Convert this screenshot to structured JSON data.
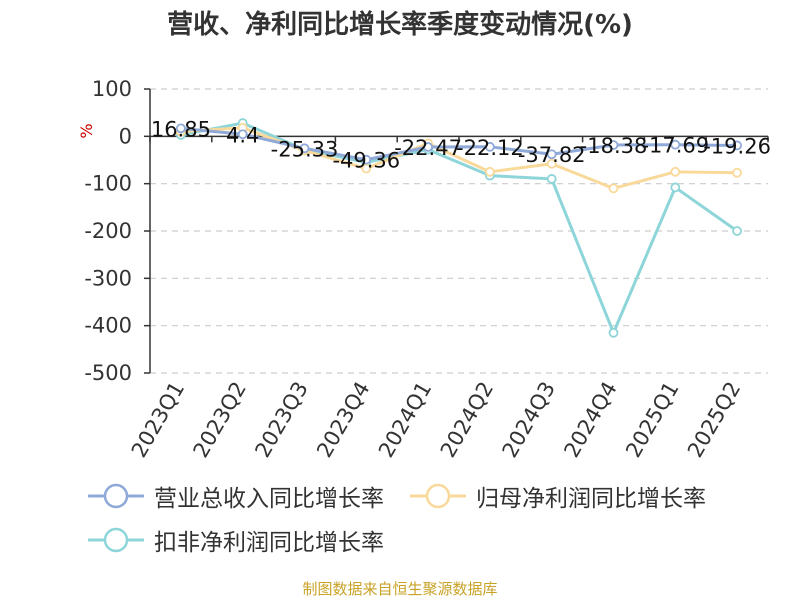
{
  "title": "营收、净利同比增长率季度变动情况(%)",
  "footer": "制图数据来自恒生聚源数据库",
  "colors": {
    "revenue": "#8fa9d8",
    "parent_profit": "#f9d99a",
    "deducted_profit": "#8dd5d9",
    "axis": "#333333",
    "grid": "#cccccc",
    "unit": "#cc0000"
  },
  "chart_data": {
    "type": "line",
    "title": "营收、净利同比增长率季度变动情况(%)",
    "unit_label": "%",
    "categories": [
      "2023Q1",
      "2023Q2",
      "2023Q3",
      "2023Q4",
      "2024Q1",
      "2024Q2",
      "2024Q3",
      "2024Q4",
      "2025Q1",
      "2025Q2"
    ],
    "yticks": [
      100,
      0,
      -100,
      -200,
      -300,
      -400,
      -500
    ],
    "ylim": [
      -500,
      100
    ],
    "grid": true,
    "legend_position": "bottom",
    "series": [
      {
        "name": "营业总收入同比增长率",
        "color_key": "revenue",
        "values": [
          16.85,
          4.4,
          -25.33,
          -49.36,
          -22.47,
          -22.12,
          -37.82,
          -18.38,
          -17.69,
          -19.26
        ],
        "labels": [
          "16.85",
          "4.4",
          "-25.33",
          "-49.36",
          "-22.47",
          "-22.12",
          "-37.82",
          "-18.38",
          "-17.69",
          "-19.26"
        ]
      },
      {
        "name": "归母净利润同比增长率",
        "color_key": "parent_profit",
        "values": [
          10,
          18,
          -30,
          -68,
          -15,
          -75,
          -58,
          -110,
          -75,
          -77
        ]
      },
      {
        "name": "扣非净利润同比增长率",
        "color_key": "deducted_profit",
        "values": [
          3,
          28,
          -28,
          -55,
          -28,
          -83,
          -90,
          -415,
          -108,
          -200
        ]
      }
    ]
  }
}
